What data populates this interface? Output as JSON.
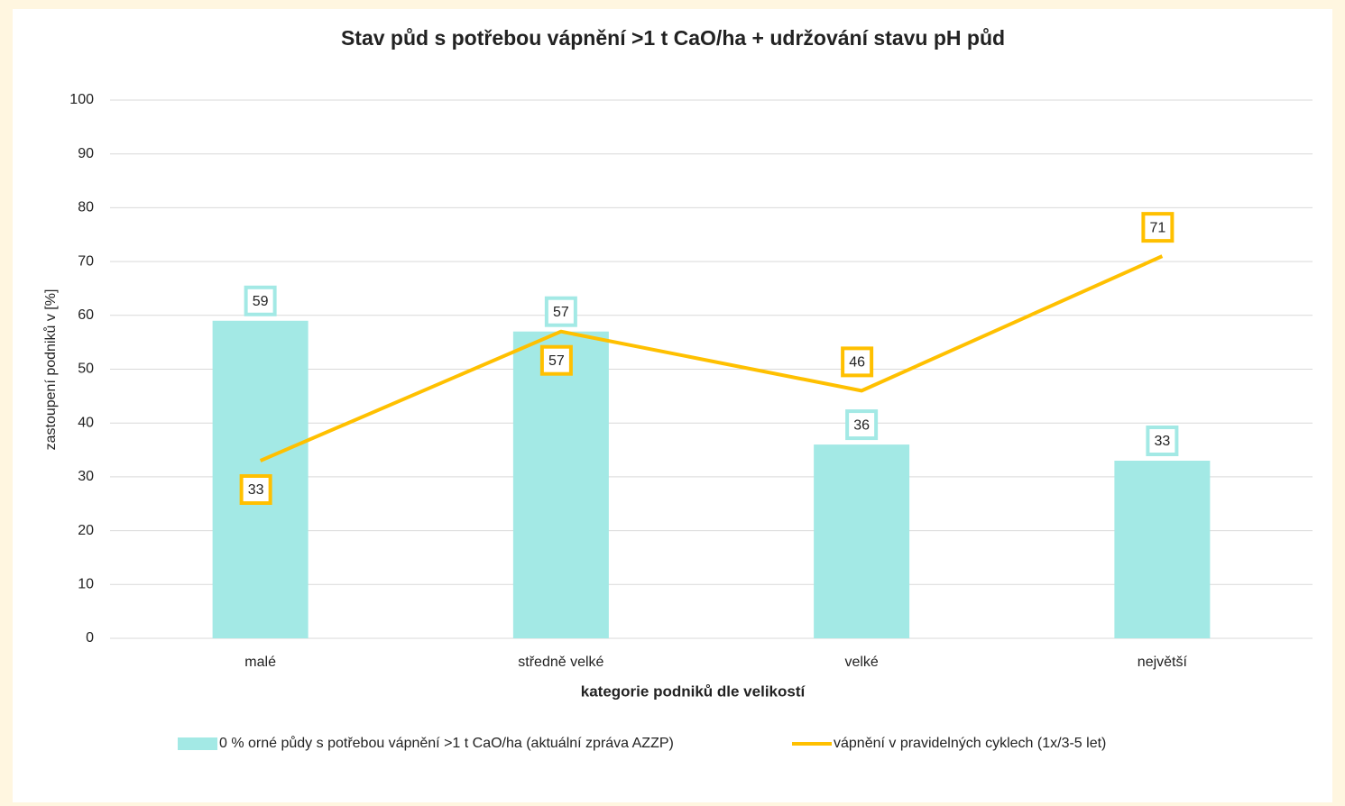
{
  "chart_data": {
    "type": "combo",
    "title": "Stav půd s potřebou vápnění >1 t CaO/ha + udržování stavu pH půd",
    "x_label": "kategorie podniků dle velikostí",
    "y_label": "zastoupení podniků v [%]",
    "categories": [
      "malé",
      "středně velké",
      "velké",
      "největší"
    ],
    "series": [
      {
        "name": "0 % orné půdy s potřebou vápnění >1 t CaO/ha (aktuální zpráva AZZP)",
        "type": "bar",
        "color": "#a3e9e5",
        "values": [
          59,
          57,
          36,
          33
        ]
      },
      {
        "name": "vápnění v pravidelných cyklech (1x/3-5 let)",
        "type": "line",
        "color": "#ffc000",
        "values": [
          33,
          57,
          46,
          71
        ]
      }
    ],
    "ylim": [
      0,
      100
    ],
    "yticks": [
      0,
      10,
      20,
      30,
      40,
      50,
      60,
      70,
      80,
      90,
      100
    ],
    "grid": true,
    "legend": "bottom"
  }
}
